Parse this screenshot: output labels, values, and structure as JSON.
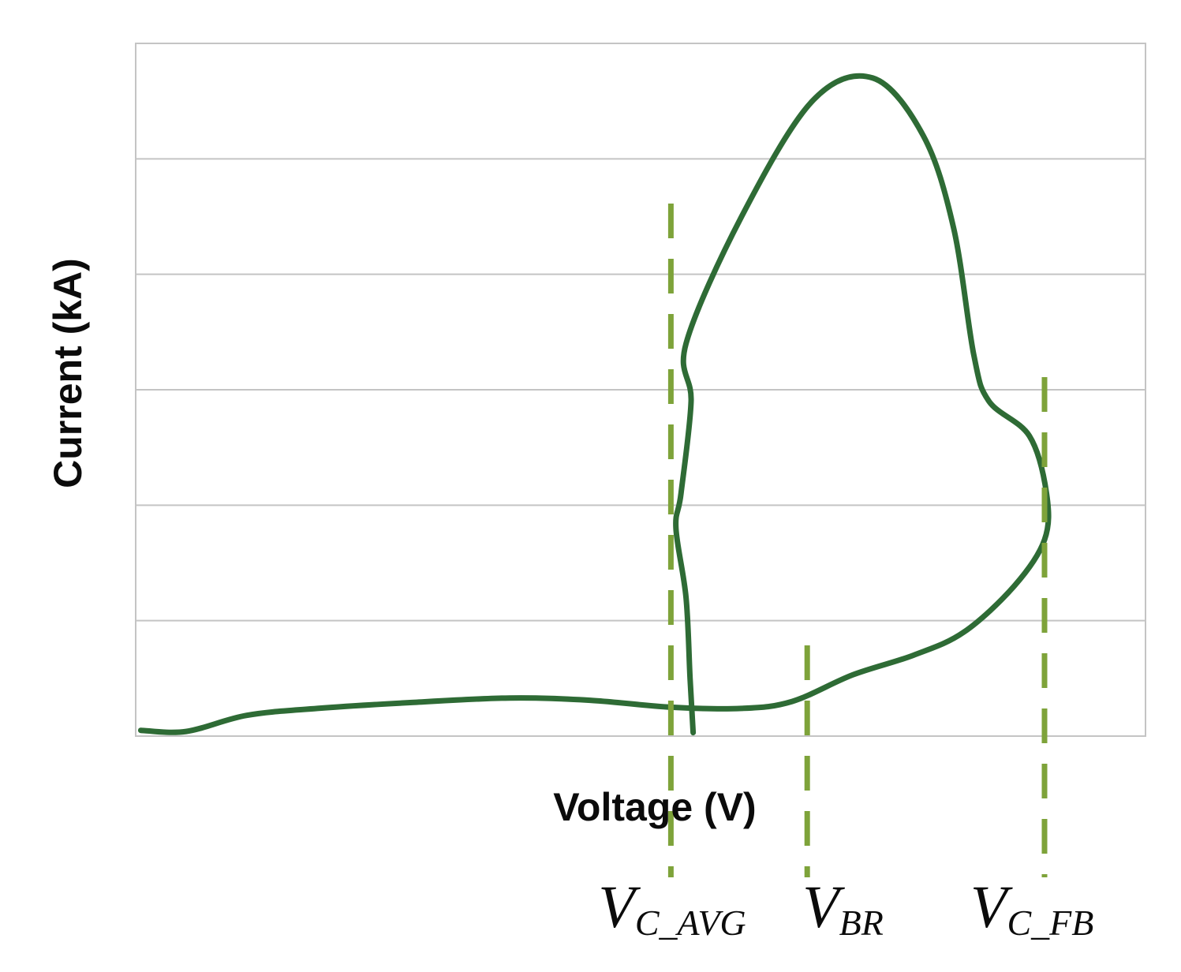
{
  "chart_data": {
    "type": "line",
    "title": "",
    "xlabel": "Voltage (V)",
    "ylabel": "Current (kA)",
    "x_ticks_shown": false,
    "y_ticks_shown": false,
    "grid": "horizontal",
    "xlim": [
      0,
      100
    ],
    "ylim": [
      0,
      6
    ],
    "series": [
      {
        "color": "#2e6b35",
        "points": [
          [
            0.5,
            0.05
          ],
          [
            5,
            0.04
          ],
          [
            11,
            0.18
          ],
          [
            18,
            0.24
          ],
          [
            27,
            0.29
          ],
          [
            37,
            0.33
          ],
          [
            45,
            0.31
          ],
          [
            53,
            0.25
          ],
          [
            60,
            0.24
          ],
          [
            65,
            0.3
          ],
          [
            71,
            0.53
          ],
          [
            77,
            0.7
          ],
          [
            82,
            0.9
          ],
          [
            87,
            1.3
          ],
          [
            90,
            1.7
          ],
          [
            90.2,
            2.1
          ],
          [
            88.5,
            2.6
          ],
          [
            84.5,
            2.9
          ],
          [
            83,
            3.3
          ],
          [
            81,
            4.4
          ],
          [
            78,
            5.2
          ],
          [
            73,
            5.7
          ],
          [
            67,
            5.5
          ],
          [
            60,
            4.5
          ],
          [
            54.5,
            3.4
          ],
          [
            55,
            2.9
          ],
          [
            54,
            2.1
          ],
          [
            53.5,
            1.8
          ],
          [
            54.5,
            1.2
          ],
          [
            54.9,
            0.5
          ],
          [
            55.2,
            0.03
          ]
        ]
      }
    ],
    "markers": [
      {
        "label": "V",
        "subscript": "C_AVG",
        "x": 53,
        "color": "#7ea33a",
        "style": "dashed"
      },
      {
        "label": "V",
        "subscript": "BR",
        "x": 66.5,
        "color": "#7ea33a",
        "style": "dashed"
      },
      {
        "label": "V",
        "subscript": "C_FB",
        "x": 90,
        "color": "#7ea33a",
        "style": "dashed"
      }
    ],
    "colors": {
      "grid": "#c4c4c4",
      "frame": "#c4c4c4",
      "text": "#0b0b0b"
    }
  }
}
